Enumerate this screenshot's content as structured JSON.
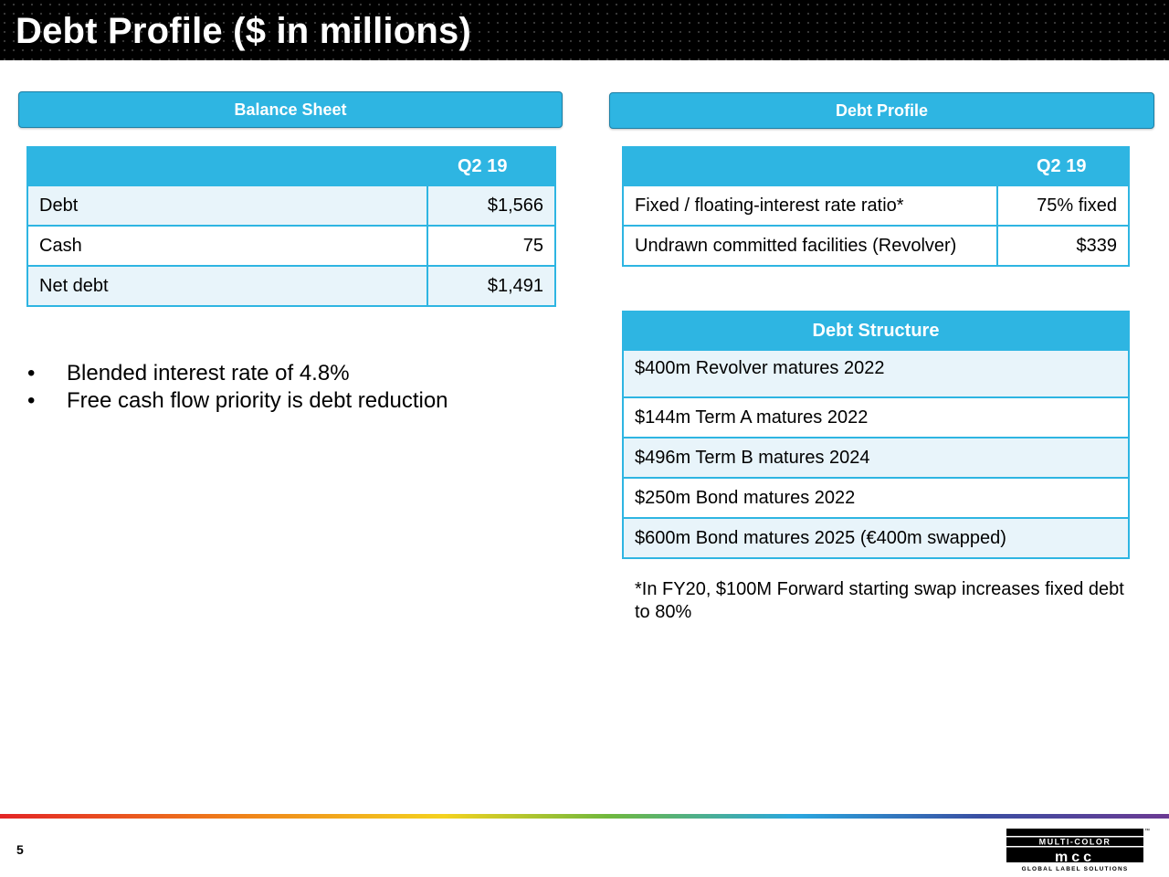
{
  "slide": {
    "title": "Debt Profile ($ in millions)",
    "page_number": "5"
  },
  "balance_sheet": {
    "header": "Balance Sheet",
    "column": "Q2 19",
    "rows": [
      {
        "label": "Debt",
        "value": "$1,566"
      },
      {
        "label": "Cash",
        "value": "75"
      },
      {
        "label": "Net debt",
        "value": "$1,491"
      }
    ]
  },
  "bullets": [
    "Blended interest rate of 4.8%",
    "Free cash flow priority is debt reduction"
  ],
  "debt_profile": {
    "header": "Debt Profile",
    "column": "Q2 19",
    "rows": [
      {
        "label": "Fixed / floating-interest rate ratio*",
        "value": "75% fixed"
      },
      {
        "label": "Undrawn committed facilities (Revolver)",
        "value": "$339"
      }
    ]
  },
  "debt_structure": {
    "header": "Debt Structure",
    "rows": [
      "$400m Revolver matures 2022",
      "$144m Term A matures 2022",
      "$496m Term B matures 2024",
      "$250m Bond matures 2022",
      "$600m Bond matures 2025 (€400m swapped)"
    ]
  },
  "footnote": "*In FY20, $100M Forward starting swap increases fixed debt to 80%",
  "logo": {
    "brand": "MULTI-COLOR",
    "monogram": "mcc",
    "tagline": "GLOBAL LABEL SOLUTIONS",
    "trademark": "™"
  },
  "colors": {
    "accent": "#2eb5e2",
    "row_shade": "#e8f4fa",
    "title_bg": "#000000"
  }
}
